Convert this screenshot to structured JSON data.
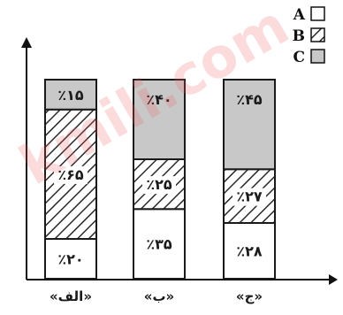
{
  "chart_data": {
    "type": "bar",
    "stacked": true,
    "percent_stacked": true,
    "categories": [
      "«الف»",
      "«ب»",
      "«ج»"
    ],
    "series": [
      {
        "name": "A",
        "values": [
          20,
          35,
          28
        ],
        "labels": [
          "٪۲۰",
          "٪۳۵",
          "٪۲۸"
        ]
      },
      {
        "name": "B",
        "values": [
          65,
          25,
          27
        ],
        "labels": [
          "٪۶۵",
          "٪۲۵",
          "٪۲۷"
        ]
      },
      {
        "name": "C",
        "values": [
          15,
          40,
          45
        ],
        "labels": [
          "٪۱۵",
          "٪۴۰",
          "٪۴۵"
        ]
      }
    ],
    "ylim": [
      0,
      100
    ],
    "grid": false,
    "legend_position": "top-right",
    "fill_styles": {
      "A": "white",
      "B": "hatched",
      "C": "gray"
    },
    "colors": {
      "A": "#ffffff",
      "B": "#c8c8c8",
      "C": "#c8c8c8",
      "outline": "#1a1a1a"
    }
  },
  "watermark": "kmili.com"
}
